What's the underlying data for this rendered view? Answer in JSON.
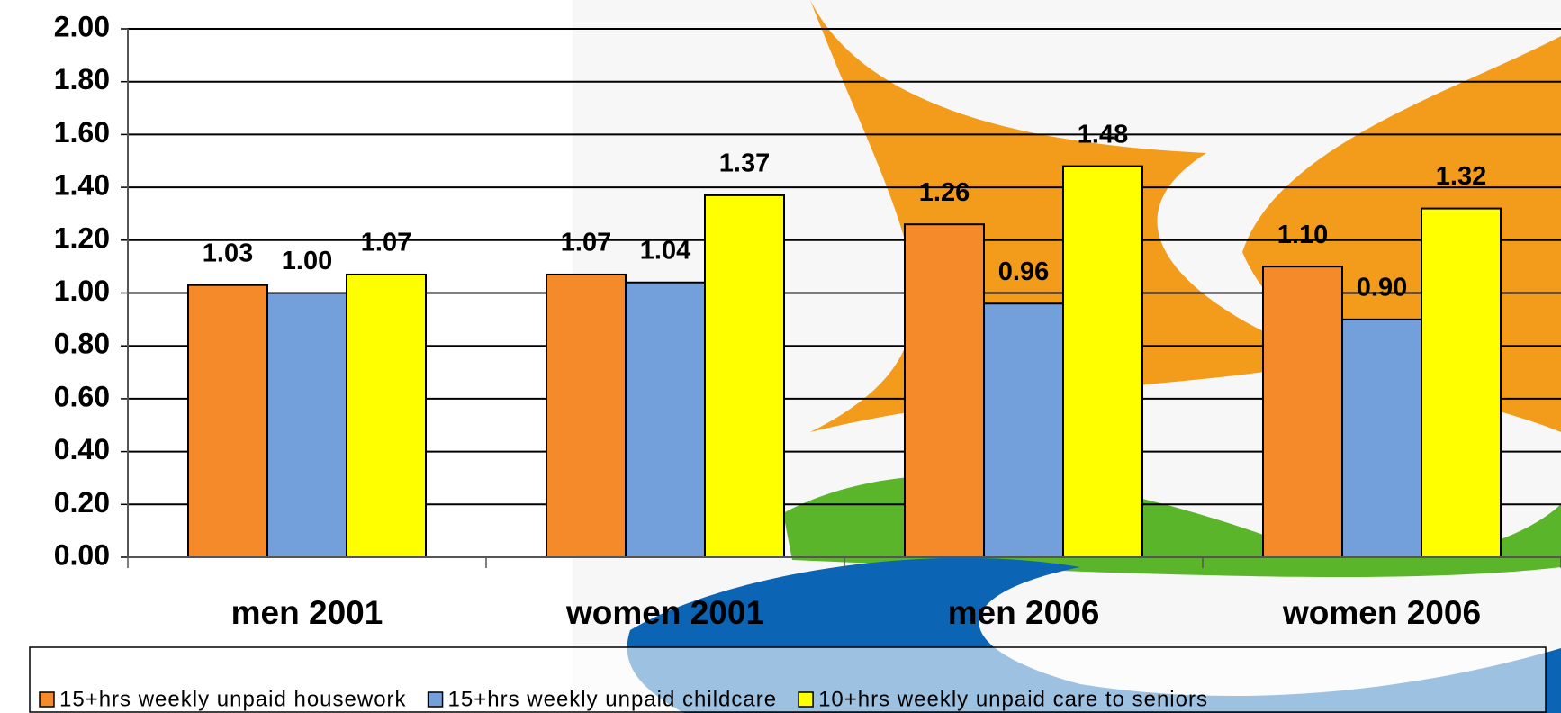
{
  "chart_data": {
    "type": "bar",
    "categories": [
      "men 2001",
      "women 2001",
      "men 2006",
      "women 2006"
    ],
    "series": [
      {
        "name": "15+hrs weekly unpaid housework",
        "color": "#f58a2a",
        "values": [
          1.03,
          1.07,
          1.26,
          1.1
        ],
        "value_labels": [
          "1.03",
          "1.07",
          "1.26",
          "1.10"
        ]
      },
      {
        "name": "15+hrs weekly unpaid childcare",
        "color": "#739fdb",
        "values": [
          1.0,
          1.04,
          0.96,
          0.9
        ],
        "value_labels": [
          "1.00",
          "1.04",
          "0.96",
          "0.90"
        ]
      },
      {
        "name": "10+hrs weekly unpaid care to seniors",
        "color": "#ffff00",
        "values": [
          1.07,
          1.37,
          1.48,
          1.32
        ],
        "value_labels": [
          "1.07",
          "1.37",
          "1.48",
          "1.32"
        ]
      }
    ],
    "ylim": [
      0,
      2
    ],
    "yticks": [
      {
        "value": 0,
        "label": "0.00"
      },
      {
        "value": 0.2,
        "label": "0.20"
      },
      {
        "value": 0.4,
        "label": "0.40"
      },
      {
        "value": 0.6,
        "label": "0.60"
      },
      {
        "value": 0.8,
        "label": "0.80"
      },
      {
        "value": 1,
        "label": "1.00"
      },
      {
        "value": 1.2,
        "label": "1.20"
      },
      {
        "value": 1.4,
        "label": "1.40"
      },
      {
        "value": 1.6,
        "label": "1.60"
      },
      {
        "value": 1.8,
        "label": "1.80"
      },
      {
        "value": 2,
        "label": "2.00"
      }
    ],
    "grid": true,
    "legend": "bottom"
  }
}
